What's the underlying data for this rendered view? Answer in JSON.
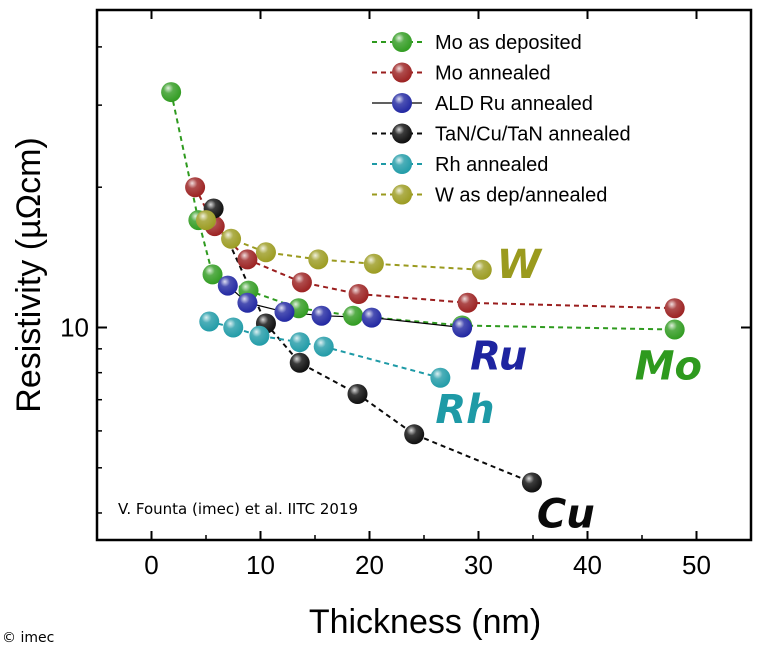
{
  "chart_data": {
    "type": "scatter",
    "title": "",
    "xlabel": "Thickness (nm)",
    "ylabel": "Resistivity (µΩcm)",
    "xlim": [
      -5,
      55
    ],
    "ylim": [
      3.5,
      48
    ],
    "yscale": "log",
    "xticks": [
      0,
      10,
      20,
      30,
      40,
      50
    ],
    "yticks": [
      10
    ],
    "legend_position": "top-right",
    "series": [
      {
        "key": "mo_dep",
        "name": "Mo as deposited",
        "label": "Mo",
        "color": "#2e9a1e",
        "line": "dashed",
        "x": [
          1.8,
          4.3,
          5.6,
          8.9,
          13.5,
          18.5,
          28.5,
          48.0
        ],
        "y": [
          32.0,
          17.0,
          13.0,
          12.0,
          11.0,
          10.6,
          10.1,
          9.9
        ]
      },
      {
        "key": "mo_ann",
        "name": "Mo annealed",
        "label": "",
        "color": "#9a1e1e",
        "line": "dashed",
        "x": [
          4.0,
          5.8,
          8.8,
          13.8,
          19.0,
          29.0,
          48.0
        ],
        "y": [
          20.0,
          16.5,
          14.0,
          12.5,
          11.8,
          11.3,
          11.0
        ]
      },
      {
        "key": "ru_ann",
        "name": "ALD Ru annealed",
        "label": "Ru",
        "color": "#1e24a0",
        "line": "solid",
        "x": [
          7.0,
          8.8,
          12.2,
          15.6,
          20.2,
          28.5
        ],
        "y": [
          12.3,
          11.3,
          10.8,
          10.6,
          10.5,
          10.0
        ]
      },
      {
        "key": "cu",
        "name": "TaN/Cu/TaN annealed",
        "label": "Cu",
        "color": "#0a0a0a",
        "line": "dashed",
        "x": [
          5.7,
          10.5,
          13.6,
          18.9,
          24.1,
          34.9
        ],
        "y": [
          18.0,
          10.2,
          8.4,
          7.2,
          5.9,
          4.65
        ]
      },
      {
        "key": "rh_ann",
        "name": "Rh annealed",
        "label": "Rh",
        "color": "#1e9aa6",
        "line": "dashed",
        "x": [
          5.3,
          7.5,
          9.9,
          13.6,
          15.8,
          26.5
        ],
        "y": [
          10.3,
          10.0,
          9.6,
          9.3,
          9.1,
          7.8
        ]
      },
      {
        "key": "w",
        "name": "W as dep/annealed",
        "label": "W",
        "color": "#9a9a1e",
        "line": "dashed",
        "x": [
          5.0,
          7.3,
          10.5,
          15.3,
          20.4,
          30.3
        ],
        "y": [
          17.0,
          15.5,
          14.5,
          14.0,
          13.7,
          13.3
        ]
      }
    ],
    "annotations": [
      "V. Founta (imec) et al. IITC 2019"
    ]
  },
  "footer": {
    "copyright": "© imec"
  }
}
